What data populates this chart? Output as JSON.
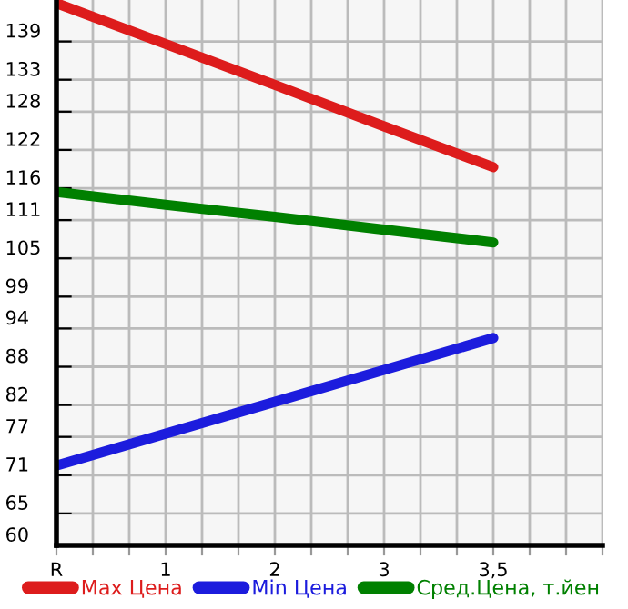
{
  "chart_data": {
    "type": "line",
    "categories": [
      "R",
      "1",
      "2",
      "3",
      "3,5"
    ],
    "series": [
      {
        "name": "Max Цена",
        "color": "#dd1c1c",
        "values": [
          145,
          138.6,
          132.2,
          125.7,
          119.3
        ]
      },
      {
        "name": "Min Цена",
        "color": "#1c1cdd",
        "values": [
          72.5,
          77.5,
          82.5,
          87.5,
          92.5
        ]
      },
      {
        "name": "Сред.Цена, т.йен",
        "color": "#008000",
        "values": [
          115.4,
          113.4,
          111.5,
          109.5,
          107.5
        ]
      }
    ],
    "ylim": [
      60,
      145.5
    ],
    "yticks": [
      60,
      65,
      71,
      77,
      82,
      88,
      94,
      99,
      105,
      111,
      116,
      122,
      128,
      133,
      139
    ],
    "grid": true,
    "legend": "bottom",
    "marker": "none",
    "line_style": "solid"
  }
}
